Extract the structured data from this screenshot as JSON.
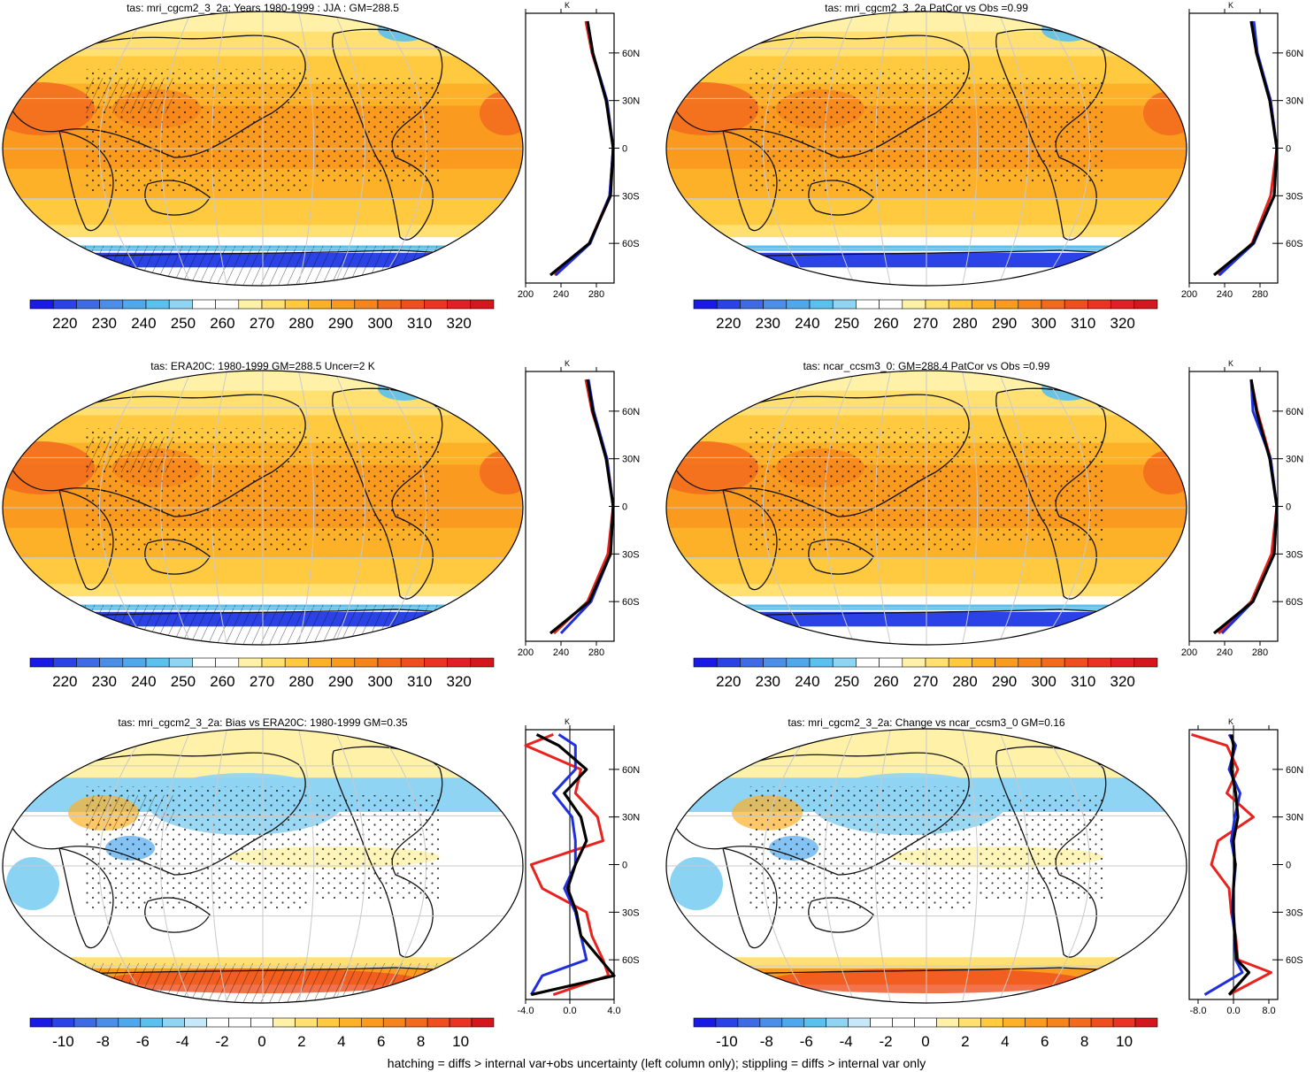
{
  "footnote": "hatching = diffs > internal var+obs uncertainty (left column only); stippling = diffs > internal var only",
  "palettes": {
    "abs": [
      "#1a1ae6",
      "#2a42e6",
      "#3e6be3",
      "#4a8ee8",
      "#4fa8ec",
      "#5ac0ee",
      "#8fd4f3",
      "#ffffff",
      "#ffffff",
      "#fff2a8",
      "#ffe070",
      "#ffc940",
      "#fdb128",
      "#fa9a1e",
      "#f6841c",
      "#f26a1d",
      "#ef4f1f",
      "#eb3323",
      "#e01f26",
      "#d4161d"
    ],
    "diff": [
      "#1a1ae6",
      "#2a42e6",
      "#3e6be3",
      "#4a8ee8",
      "#4fa8ec",
      "#5ac0ee",
      "#8fd4f3",
      "#c7e8f8",
      "#ffffff",
      "#ffffff",
      "#ffffff",
      "#fff2a8",
      "#ffe070",
      "#ffc940",
      "#fdb128",
      "#fa9a1e",
      "#f6841c",
      "#f26a1d",
      "#ef4f1f",
      "#eb3323",
      "#d4161d"
    ]
  },
  "panels": [
    {
      "title": "tas: mri_cgcm2_3_2a: Years 1980-1999 : JJA : GM=288.5",
      "kind": "abs",
      "colorbar_ticks": [
        "220",
        "230",
        "240",
        "250",
        "260",
        "270",
        "280",
        "290",
        "300",
        "310",
        "320"
      ],
      "zonal_unit": "K",
      "zonal_x_ticks": [
        "200",
        "240",
        "280"
      ],
      "zonal_y_ticks": [
        "60N",
        "30N",
        "0",
        "30S",
        "60S"
      ]
    },
    {
      "title": "tas: mri_cgcm2_3_2a PatCor vs Obs =0.99",
      "kind": "abs",
      "colorbar_ticks": [
        "220",
        "230",
        "240",
        "250",
        "260",
        "270",
        "280",
        "290",
        "300",
        "310",
        "320"
      ],
      "zonal_unit": "K",
      "zonal_x_ticks": [
        "200",
        "240",
        "280"
      ],
      "zonal_y_ticks": [
        "60N",
        "30N",
        "0",
        "30S",
        "60S"
      ]
    },
    {
      "title": "tas: ERA20C: 1980-1999 GM=288.5 Uncer=2 K",
      "kind": "abs",
      "colorbar_ticks": [
        "220",
        "230",
        "240",
        "250",
        "260",
        "270",
        "280",
        "290",
        "300",
        "310",
        "320"
      ],
      "zonal_unit": "K",
      "zonal_x_ticks": [
        "200",
        "240",
        "280"
      ],
      "zonal_y_ticks": [
        "60N",
        "30N",
        "0",
        "30S",
        "60S"
      ]
    },
    {
      "title": "tas: ncar_ccsm3_0: GM=288.4 PatCor vs Obs =0.99",
      "kind": "abs",
      "colorbar_ticks": [
        "220",
        "230",
        "240",
        "250",
        "260",
        "270",
        "280",
        "290",
        "300",
        "310",
        "320"
      ],
      "zonal_unit": "K",
      "zonal_x_ticks": [
        "200",
        "240",
        "280"
      ],
      "zonal_y_ticks": [
        "60N",
        "30N",
        "0",
        "30S",
        "60S"
      ]
    },
    {
      "title": "tas: mri_cgcm2_3_2a: Bias vs ERA20C: 1980-1999 GM=0.35",
      "kind": "diff",
      "colorbar_ticks": [
        "-10",
        "-8",
        "-6",
        "-4",
        "-2",
        "0",
        "2",
        "4",
        "6",
        "8",
        "10"
      ],
      "zonal_unit": "K",
      "zonal_x_ticks": [
        "-4.0",
        "0.0",
        "4.0"
      ],
      "zonal_y_ticks": [
        "60N",
        "30N",
        "0",
        "30S",
        "60S"
      ]
    },
    {
      "title": "tas: mri_cgcm2_3_2a: Change vs ncar_ccsm3_0 GM=0.16",
      "kind": "diff",
      "colorbar_ticks": [
        "-10",
        "-8",
        "-6",
        "-4",
        "-2",
        "0",
        "2",
        "4",
        "6",
        "8",
        "10"
      ],
      "zonal_unit": "K",
      "zonal_x_ticks": [
        "-8.0",
        "0.0",
        "8.0"
      ],
      "zonal_y_ticks": [
        "60N",
        "30N",
        "0",
        "30S",
        "60S"
      ]
    }
  ],
  "chart_data": [
    {
      "type": "heatmap",
      "title": "tas: mri_cgcm2_3_2a: Years 1980-1999 : JJA : GM=288.5",
      "zlim": [
        215,
        325
      ],
      "zonal_mean": {
        "type": "line",
        "xlim": [
          200,
          300
        ],
        "lat": [
          80,
          60,
          30,
          0,
          -30,
          -60,
          -80
        ],
        "series": [
          {
            "color": "#e8231f",
            "values": [
              268,
              275,
              292,
              299,
              295,
              272,
              233
            ]
          },
          {
            "color": "#1f2fe0",
            "values": [
              270,
              276,
              292,
              299,
              295,
              273,
              234
            ]
          },
          {
            "color": "#000000",
            "values": [
              270,
              276,
              291,
              299,
              296,
              272,
              228
            ]
          }
        ]
      }
    },
    {
      "type": "heatmap",
      "title": "tas: mri_cgcm2_3_2a PatCor vs Obs =0.99",
      "zlim": [
        215,
        325
      ],
      "zonal_mean": {
        "type": "line",
        "xlim": [
          200,
          300
        ],
        "lat": [
          80,
          60,
          30,
          0,
          -30,
          -60,
          -80
        ],
        "series": [
          {
            "color": "#e8231f",
            "values": [
              272,
              276,
              292,
              299,
              292,
              271,
              233
            ]
          },
          {
            "color": "#1f2fe0",
            "values": [
              273,
              277,
              292,
              299,
              296,
              273,
              234
            ]
          },
          {
            "color": "#000000",
            "values": [
              270,
              276,
              291,
              299,
              296,
              272,
              228
            ]
          }
        ]
      }
    },
    {
      "type": "heatmap",
      "title": "tas: ERA20C: 1980-1999 GM=288.5 Uncer=2 K",
      "zlim": [
        215,
        325
      ],
      "zonal_mean": {
        "type": "line",
        "xlim": [
          200,
          300
        ],
        "lat": [
          80,
          60,
          30,
          0,
          -30,
          -60,
          -80
        ],
        "series": [
          {
            "color": "#e8231f",
            "values": [
              268,
              275,
              292,
              299,
              293,
              270,
              232
            ]
          },
          {
            "color": "#1f2fe0",
            "values": [
              271,
              277,
              292,
              299,
              296,
              274,
              240
            ]
          },
          {
            "color": "#000000",
            "values": [
              270,
              276,
              291,
              299,
              296,
              272,
              228
            ]
          }
        ]
      }
    },
    {
      "type": "heatmap",
      "title": "tas: ncar_ccsm3_0: GM=288.4 PatCor vs Obs =0.99",
      "zlim": [
        215,
        325
      ],
      "zonal_mean": {
        "type": "line",
        "xlim": [
          200,
          300
        ],
        "lat": [
          80,
          60,
          30,
          0,
          -30,
          -60,
          -80
        ],
        "series": [
          {
            "color": "#e8231f",
            "values": [
              270,
              277,
              292,
              299,
              293,
              270,
              233
            ]
          },
          {
            "color": "#1f2fe0",
            "values": [
              270,
              272,
              292,
              299,
              296,
              272,
              237
            ]
          },
          {
            "color": "#000000",
            "values": [
              270,
              276,
              291,
              299,
              296,
              272,
              228
            ]
          }
        ]
      }
    },
    {
      "type": "heatmap",
      "title": "tas: mri_cgcm2_3_2a: Bias vs ERA20C: 1980-1999 GM=0.35",
      "zlim": [
        -11,
        11
      ],
      "zonal_mean": {
        "type": "line",
        "xlim": [
          -4,
          4
        ],
        "lat": [
          82,
          75,
          60,
          45,
          30,
          15,
          0,
          -15,
          -30,
          -45,
          -60,
          -70,
          -82
        ],
        "series": [
          {
            "color": "#e8231f",
            "values": [
              -1.5,
              -4.0,
              1.0,
              0.5,
              2.5,
              3.0,
              -3.5,
              -2.5,
              1.5,
              2.0,
              3.0,
              3.5,
              -1.5
            ]
          },
          {
            "color": "#1f2fe0",
            "values": [
              -1.0,
              0.5,
              0.5,
              -1.5,
              0.2,
              0.5,
              0.5,
              -0.5,
              0.5,
              1.0,
              1.5,
              -2.5,
              -3.5
            ]
          },
          {
            "color": "#000000",
            "values": [
              -3.0,
              -1.0,
              1.5,
              -0.5,
              1.0,
              1.5,
              0.5,
              -0.2,
              0.6,
              1.0,
              2.8,
              4.0,
              -3.5
            ]
          }
        ]
      }
    },
    {
      "type": "heatmap",
      "title": "tas: mri_cgcm2_3_2a: Change vs ncar_ccsm3_0 GM=0.16",
      "zlim": [
        -11,
        11
      ],
      "zonal_mean": {
        "type": "line",
        "xlim": [
          -10,
          10
        ],
        "lat": [
          82,
          75,
          60,
          45,
          30,
          15,
          0,
          -15,
          -30,
          -45,
          -60,
          -68,
          -82
        ],
        "series": [
          {
            "color": "#e8231f",
            "values": [
              -9.5,
              -1.5,
              1.0,
              -1.5,
              4.5,
              -3.5,
              -5.0,
              -1.0,
              -0.5,
              0.5,
              1.0,
              8.5,
              -1.0
            ]
          },
          {
            "color": "#1f2fe0",
            "values": [
              -1.0,
              0.5,
              -1.0,
              1.5,
              0.3,
              -0.5,
              0.5,
              0.0,
              -0.3,
              0.3,
              0.5,
              2.0,
              -6.5
            ]
          },
          {
            "color": "#000000",
            "values": [
              -0.5,
              0.0,
              -0.5,
              0.5,
              1.0,
              0.0,
              0.3,
              0.0,
              0.0,
              0.3,
              0.8,
              3.5,
              -1.0
            ]
          }
        ]
      }
    }
  ]
}
